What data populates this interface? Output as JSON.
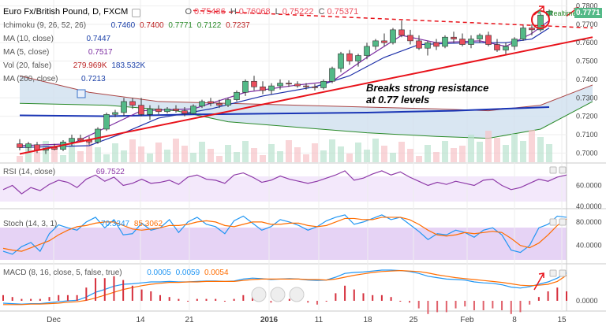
{
  "header": {
    "title": "Euro Fx/British Pound, D, FXCM",
    "ohlc": {
      "o_label": "O",
      "o": "0.75486",
      "h_label": "H",
      "h": "0.76068",
      "l_label": "L",
      "l": "0.75222",
      "c_label": "C",
      "c": "0.75371"
    }
  },
  "indicators": {
    "ichimoku": {
      "name": "Ichimoku (9, 26, 52, 26)",
      "values": [
        "0.7460",
        "0.7400",
        "0.7771",
        "0.7122",
        "0.7237"
      ]
    },
    "ma10": {
      "name": "MA (10, close)",
      "value": "0.7447"
    },
    "ma5": {
      "name": "MA (5, close)",
      "value": "0.7517"
    },
    "vol": {
      "name": "Vol (20, false)",
      "values": [
        "279.969K",
        "183.532K"
      ]
    },
    "ma200": {
      "name": "MA (200, close)",
      "value": "0.7213"
    }
  },
  "rsi": {
    "name": "RSI (14, close)",
    "value": "69.7522"
  },
  "stoch": {
    "name": "Stoch (14, 3, 1)",
    "values": [
      "70.3347",
      "85.3062"
    ]
  },
  "macd": {
    "name": "MACD (8, 16, close, 5, false, true)",
    "values": [
      "0.0005",
      "0.0059",
      "0.0054"
    ]
  },
  "realtime_label": "Realtime",
  "annotation": [
    "Breaks strong resistance",
    "at 0.77 levels"
  ],
  "last_price": "0.7771",
  "colors": {
    "up": "#53b987",
    "down": "#eb4d5c",
    "trend": "#e8121a",
    "ma10": "#1c2fa8",
    "ma5": "#7b2ba0",
    "ma200": "#1a35b5",
    "rsi": "#8e3aa8",
    "stoch_k": "#2196f3",
    "stoch_d": "#ff6d00",
    "macd": "#2196f3",
    "signal": "#ff6d00"
  },
  "chart_data": [
    {
      "type": "candlestick",
      "x_ticks": [
        "Dec",
        "14",
        "21",
        "2016",
        "11",
        "18",
        "25",
        "Feb",
        "8",
        "15"
      ],
      "y_ticks": [
        "0.7000",
        "0.7100",
        "0.7200",
        "0.7300",
        "0.7400",
        "0.7500",
        "0.7600",
        "0.7700",
        "0.7800"
      ],
      "ylim": [
        0.695,
        0.7815
      ],
      "candles": [
        {
          "o": 0.705,
          "h": 0.7075,
          "l": 0.7015,
          "c": 0.703
        },
        {
          "o": 0.703,
          "h": 0.706,
          "l": 0.701,
          "c": 0.705
        },
        {
          "o": 0.7045,
          "h": 0.706,
          "l": 0.7,
          "c": 0.7015
        },
        {
          "o": 0.7015,
          "h": 0.703,
          "l": 0.6995,
          "c": 0.7025
        },
        {
          "o": 0.703,
          "h": 0.705,
          "l": 0.7015,
          "c": 0.702
        },
        {
          "o": 0.702,
          "h": 0.707,
          "l": 0.701,
          "c": 0.706
        },
        {
          "o": 0.706,
          "h": 0.71,
          "l": 0.704,
          "c": 0.708
        },
        {
          "o": 0.708,
          "h": 0.71,
          "l": 0.706,
          "c": 0.707
        },
        {
          "o": 0.707,
          "h": 0.709,
          "l": 0.7045,
          "c": 0.706
        },
        {
          "o": 0.706,
          "h": 0.714,
          "l": 0.705,
          "c": 0.713
        },
        {
          "o": 0.713,
          "h": 0.722,
          "l": 0.712,
          "c": 0.721
        },
        {
          "o": 0.721,
          "h": 0.7235,
          "l": 0.7195,
          "c": 0.722
        },
        {
          "o": 0.722,
          "h": 0.73,
          "l": 0.72,
          "c": 0.728
        },
        {
          "o": 0.728,
          "h": 0.73,
          "l": 0.724,
          "c": 0.726
        },
        {
          "o": 0.726,
          "h": 0.73,
          "l": 0.72,
          "c": 0.721
        },
        {
          "o": 0.721,
          "h": 0.726,
          "l": 0.718,
          "c": 0.724
        },
        {
          "o": 0.724,
          "h": 0.726,
          "l": 0.721,
          "c": 0.7225
        },
        {
          "o": 0.7225,
          "h": 0.725,
          "l": 0.7215,
          "c": 0.724
        },
        {
          "o": 0.724,
          "h": 0.726,
          "l": 0.722,
          "c": 0.723
        },
        {
          "o": 0.723,
          "h": 0.725,
          "l": 0.72,
          "c": 0.7215
        },
        {
          "o": 0.7215,
          "h": 0.7265,
          "l": 0.721,
          "c": 0.7255
        },
        {
          "o": 0.7255,
          "h": 0.729,
          "l": 0.7245,
          "c": 0.728
        },
        {
          "o": 0.728,
          "h": 0.73,
          "l": 0.7255,
          "c": 0.727
        },
        {
          "o": 0.727,
          "h": 0.729,
          "l": 0.7245,
          "c": 0.726
        },
        {
          "o": 0.726,
          "h": 0.73,
          "l": 0.725,
          "c": 0.729
        },
        {
          "o": 0.729,
          "h": 0.734,
          "l": 0.728,
          "c": 0.733
        },
        {
          "o": 0.733,
          "h": 0.74,
          "l": 0.731,
          "c": 0.739
        },
        {
          "o": 0.739,
          "h": 0.742,
          "l": 0.734,
          "c": 0.736
        },
        {
          "o": 0.736,
          "h": 0.739,
          "l": 0.732,
          "c": 0.734
        },
        {
          "o": 0.734,
          "h": 0.738,
          "l": 0.732,
          "c": 0.7365
        },
        {
          "o": 0.7365,
          "h": 0.74,
          "l": 0.7345,
          "c": 0.738
        },
        {
          "o": 0.738,
          "h": 0.7395,
          "l": 0.736,
          "c": 0.7375
        },
        {
          "o": 0.7375,
          "h": 0.739,
          "l": 0.7355,
          "c": 0.7365
        },
        {
          "o": 0.7365,
          "h": 0.738,
          "l": 0.7345,
          "c": 0.736
        },
        {
          "o": 0.736,
          "h": 0.7375,
          "l": 0.734,
          "c": 0.7355
        },
        {
          "o": 0.7355,
          "h": 0.74,
          "l": 0.7345,
          "c": 0.739
        },
        {
          "o": 0.739,
          "h": 0.747,
          "l": 0.738,
          "c": 0.746
        },
        {
          "o": 0.746,
          "h": 0.755,
          "l": 0.744,
          "c": 0.754
        },
        {
          "o": 0.754,
          "h": 0.756,
          "l": 0.748,
          "c": 0.75
        },
        {
          "o": 0.75,
          "h": 0.754,
          "l": 0.747,
          "c": 0.753
        },
        {
          "o": 0.753,
          "h": 0.76,
          "l": 0.751,
          "c": 0.758
        },
        {
          "o": 0.758,
          "h": 0.762,
          "l": 0.756,
          "c": 0.761
        },
        {
          "o": 0.761,
          "h": 0.765,
          "l": 0.758,
          "c": 0.76
        },
        {
          "o": 0.76,
          "h": 0.768,
          "l": 0.759,
          "c": 0.767
        },
        {
          "o": 0.767,
          "h": 0.772,
          "l": 0.763,
          "c": 0.764
        },
        {
          "o": 0.764,
          "h": 0.767,
          "l": 0.759,
          "c": 0.761
        },
        {
          "o": 0.761,
          "h": 0.764,
          "l": 0.756,
          "c": 0.757
        },
        {
          "o": 0.757,
          "h": 0.761,
          "l": 0.753,
          "c": 0.76
        },
        {
          "o": 0.76,
          "h": 0.762,
          "l": 0.756,
          "c": 0.758
        },
        {
          "o": 0.758,
          "h": 0.764,
          "l": 0.757,
          "c": 0.763
        },
        {
          "o": 0.763,
          "h": 0.766,
          "l": 0.76,
          "c": 0.762
        },
        {
          "o": 0.762,
          "h": 0.765,
          "l": 0.758,
          "c": 0.759
        },
        {
          "o": 0.759,
          "h": 0.764,
          "l": 0.757,
          "c": 0.762
        },
        {
          "o": 0.762,
          "h": 0.765,
          "l": 0.76,
          "c": 0.764
        },
        {
          "o": 0.764,
          "h": 0.766,
          "l": 0.758,
          "c": 0.759
        },
        {
          "o": 0.759,
          "h": 0.762,
          "l": 0.755,
          "c": 0.756
        },
        {
          "o": 0.756,
          "h": 0.76,
          "l": 0.753,
          "c": 0.758
        },
        {
          "o": 0.758,
          "h": 0.763,
          "l": 0.756,
          "c": 0.762
        },
        {
          "o": 0.762,
          "h": 0.77,
          "l": 0.761,
          "c": 0.768
        },
        {
          "o": 0.768,
          "h": 0.77,
          "l": 0.764,
          "c": 0.767
        },
        {
          "o": 0.767,
          "h": 0.776,
          "l": 0.766,
          "c": 0.775
        },
        {
          "o": 0.775,
          "h": 0.778,
          "l": 0.773,
          "c": 0.7771
        }
      ],
      "ma10": [
        [
          0,
          0.703
        ],
        [
          8,
          0.704
        ],
        [
          12,
          0.711
        ],
        [
          16,
          0.719
        ],
        [
          22,
          0.724
        ],
        [
          28,
          0.731
        ],
        [
          34,
          0.736
        ],
        [
          38,
          0.742
        ],
        [
          42,
          0.752
        ],
        [
          46,
          0.759
        ],
        [
          52,
          0.76
        ],
        [
          56,
          0.76
        ],
        [
          59,
          0.762
        ],
        [
          61,
          0.768
        ]
      ],
      "ma5": [
        [
          0,
          0.704
        ],
        [
          6,
          0.705
        ],
        [
          10,
          0.714
        ],
        [
          14,
          0.723
        ],
        [
          20,
          0.724
        ],
        [
          26,
          0.733
        ],
        [
          32,
          0.737
        ],
        [
          36,
          0.739
        ],
        [
          40,
          0.752
        ],
        [
          44,
          0.764
        ],
        [
          48,
          0.76
        ],
        [
          53,
          0.761
        ],
        [
          56,
          0.758
        ],
        [
          59,
          0.765
        ],
        [
          61,
          0.772
        ]
      ],
      "ma200": [
        [
          0,
          0.7205
        ],
        [
          10,
          0.72
        ],
        [
          20,
          0.721
        ],
        [
          30,
          0.7215
        ],
        [
          40,
          0.722
        ],
        [
          50,
          0.723
        ],
        [
          61,
          0.725
        ]
      ],
      "cloud_a": [
        [
          0,
          0.727
        ],
        [
          10,
          0.726
        ],
        [
          18,
          0.723
        ],
        [
          24,
          0.717
        ],
        [
          32,
          0.714
        ],
        [
          40,
          0.711
        ],
        [
          48,
          0.709
        ],
        [
          54,
          0.708
        ],
        [
          60,
          0.713
        ],
        [
          66,
          0.728
        ]
      ],
      "cloud_b": [
        [
          0,
          0.742
        ],
        [
          8,
          0.733
        ],
        [
          16,
          0.728
        ],
        [
          24,
          0.727
        ],
        [
          32,
          0.726
        ],
        [
          40,
          0.725
        ],
        [
          48,
          0.724
        ],
        [
          54,
          0.723
        ],
        [
          60,
          0.726
        ],
        [
          66,
          0.737
        ]
      ],
      "resistance": [
        [
          20,
          0.7775
        ],
        [
          66,
          0.768
        ]
      ],
      "support": [
        [
          0,
          0.6995
        ],
        [
          66,
          0.763
        ]
      ]
    },
    {
      "type": "line",
      "name": "RSI (14, close)",
      "ylim": [
        40,
        80
      ],
      "y_ticks": [
        "40.0000",
        "60.0000"
      ],
      "values": [
        56,
        60,
        52,
        58,
        55,
        61,
        65,
        63,
        58,
        66,
        70,
        64,
        68,
        60,
        62,
        66,
        62,
        63,
        65,
        61,
        68,
        70,
        66,
        65,
        62,
        70,
        72,
        68,
        63,
        65,
        69,
        66,
        64,
        62,
        64,
        67,
        70,
        74,
        65,
        67,
        71,
        74,
        70,
        73,
        68,
        64,
        60,
        63,
        61,
        64,
        62,
        60,
        65,
        66,
        60,
        56,
        58,
        62,
        66,
        64,
        68,
        70
      ]
    },
    {
      "type": "line",
      "name": "Stoch (14, 3, 1)",
      "ylim": [
        10,
        100
      ],
      "y_ticks": [
        "40.0000",
        "80.0000"
      ],
      "series": [
        {
          "values": [
            30,
            25,
            38,
            45,
            30,
            60,
            75,
            70,
            66,
            80,
            88,
            70,
            84,
            58,
            60,
            78,
            66,
            70,
            84,
            62,
            80,
            88,
            76,
            72,
            60,
            82,
            90,
            78,
            66,
            72,
            84,
            80,
            74,
            66,
            72,
            82,
            88,
            92,
            76,
            80,
            86,
            92,
            84,
            88,
            76,
            64,
            50,
            60,
            58,
            66,
            62,
            54,
            66,
            70,
            58,
            32,
            28,
            40,
            70,
            76,
            90,
            88
          ]
        },
        {
          "values": [
            35,
            32,
            30,
            36,
            42,
            48,
            58,
            66,
            72,
            74,
            78,
            80,
            80,
            74,
            68,
            66,
            68,
            70,
            74,
            74,
            76,
            80,
            82,
            80,
            74,
            72,
            76,
            80,
            80,
            76,
            76,
            78,
            78,
            74,
            72,
            74,
            80,
            86,
            86,
            84,
            84,
            88,
            88,
            88,
            84,
            76,
            66,
            58,
            56,
            58,
            62,
            60,
            62,
            64,
            62,
            52,
            40,
            36,
            44,
            58,
            74,
            85
          ]
        }
      ]
    },
    {
      "type": "line",
      "name": "MACD (8, 16, close, 5, false, true)",
      "ylim": [
        -0.002,
        0.0075
      ],
      "y_ticks": [
        "0.0000"
      ],
      "series": [
        {
          "values": [
            -0.0005,
            -0.0006,
            -0.0007,
            -0.0006,
            -0.0006,
            -0.0004,
            -0.0002,
            0.0,
            0.0001,
            0.0008,
            0.0018,
            0.0024,
            0.0031,
            0.0035,
            0.0036,
            0.0038,
            0.004,
            0.004,
            0.0041,
            0.004,
            0.004,
            0.0041,
            0.0042,
            0.0042,
            0.0041,
            0.0042,
            0.0046,
            0.0048,
            0.0047,
            0.0045,
            0.0046,
            0.0047,
            0.0046,
            0.0044,
            0.0043,
            0.0044,
            0.005,
            0.0058,
            0.006,
            0.0061,
            0.0063,
            0.0065,
            0.0065,
            0.0064,
            0.0062,
            0.0058,
            0.0052,
            0.0049,
            0.0046,
            0.0045,
            0.0044,
            0.004,
            0.0038,
            0.0037,
            0.0034,
            0.0029,
            0.0027,
            0.003,
            0.0035,
            0.004,
            0.0048,
            0.0059
          ]
        },
        {
          "values": [
            -0.0008,
            -0.0008,
            -0.0008,
            -0.0007,
            -0.0007,
            -0.0006,
            -0.0005,
            -0.0003,
            -0.0002,
            0.0001,
            0.0006,
            0.0012,
            0.0018,
            0.0024,
            0.0028,
            0.0032,
            0.0035,
            0.0037,
            0.0039,
            0.0039,
            0.004,
            0.004,
            0.0041,
            0.0041,
            0.0041,
            0.0041,
            0.0043,
            0.0045,
            0.0046,
            0.0046,
            0.0046,
            0.0046,
            0.0046,
            0.0045,
            0.0045,
            0.0044,
            0.0046,
            0.005,
            0.0054,
            0.0057,
            0.006,
            0.0062,
            0.0063,
            0.0064,
            0.0063,
            0.0062,
            0.0059,
            0.0055,
            0.0052,
            0.0049,
            0.0047,
            0.0045,
            0.0043,
            0.0041,
            0.0039,
            0.0036,
            0.0033,
            0.0032,
            0.0033,
            0.0035,
            0.0041,
            0.0054
          ]
        }
      ]
    }
  ]
}
